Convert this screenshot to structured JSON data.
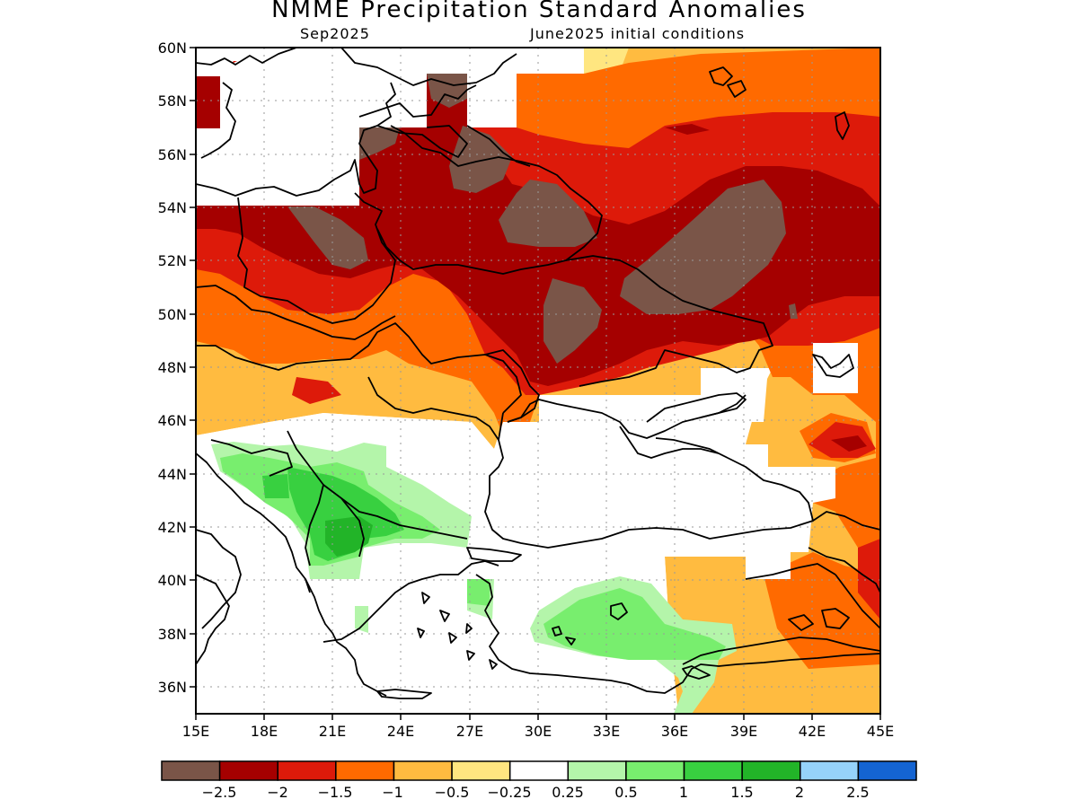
{
  "title": "NMME Precipitation Standard Anomalies",
  "subtitle_left": "Sep2025",
  "subtitle_right": "June2025 initial conditions",
  "map": {
    "region": {
      "lon_min": 15,
      "lon_max": 45,
      "lat_min": 35,
      "lat_max": 60
    },
    "lon_ticks": [
      "15E",
      "18E",
      "21E",
      "24E",
      "27E",
      "30E",
      "33E",
      "36E",
      "39E",
      "42E",
      "45E"
    ],
    "lat_ticks": [
      "60N",
      "58N",
      "56N",
      "54N",
      "52N",
      "50N",
      "48N",
      "46N",
      "44N",
      "42N",
      "40N",
      "38N",
      "36N"
    ]
  },
  "colorbar": {
    "labels": [
      "−2.5",
      "−2",
      "−1.5",
      "−1",
      "−0.5",
      "−0.25",
      "0.25",
      "0.5",
      "1",
      "1.5",
      "2",
      "2.5"
    ],
    "colors": [
      "#7a5548",
      "#a50000",
      "#dd1a0a",
      "#ff6a00",
      "#ffbb40",
      "#ffe680",
      "#ffffff",
      "#b4f5aa",
      "#78ee6e",
      "#38d040",
      "#22b428",
      "#96d2fa",
      "#1464d2"
    ]
  },
  "colors": {
    "dark_brown": "#7a5548",
    "dark_red": "#a50000",
    "red": "#dd1a0a",
    "orange": "#ff6a00",
    "light_orange": "#ffbb40",
    "yellow": "#ffe680",
    "light_green": "#b4f5aa",
    "green": "#78ee6e",
    "mid_green": "#38d040",
    "dark_green": "#22b428"
  }
}
